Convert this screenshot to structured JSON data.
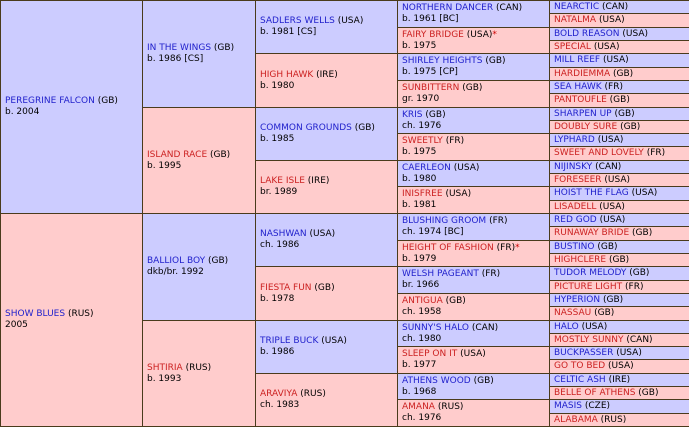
{
  "generations": [
    [
      {
        "name": "PEREGRINE FALCON",
        "country": "(GB)",
        "detail": "b. 2004"
      },
      {
        "name": "SHOW BLUES",
        "country": "(RUS)",
        "detail": "2005"
      }
    ],
    [
      {
        "name": "IN THE WINGS",
        "country": "(GB)",
        "detail": "b. 1986 [CS]"
      },
      {
        "name": "ISLAND RACE",
        "country": "(GB)",
        "detail": "b. 1995"
      },
      {
        "name": "BALLIOL BOY",
        "country": "(GB)",
        "detail": "dkb/br. 1992"
      },
      {
        "name": "SHTIRIA",
        "country": "(RUS)",
        "detail": "b. 1993"
      }
    ],
    [
      {
        "name": "SADLERS WELLS",
        "country": "(USA)",
        "detail": "b. 1981 [CS]"
      },
      {
        "name": "HIGH HAWK",
        "country": "(IRE)",
        "detail": "b. 1980"
      },
      {
        "name": "COMMON GROUNDS",
        "country": "(GB)",
        "detail": "b. 1985"
      },
      {
        "name": "LAKE ISLE",
        "country": "(IRE)",
        "detail": "br. 1989"
      },
      {
        "name": "NASHWAN",
        "country": "(USA)",
        "detail": "ch. 1986"
      },
      {
        "name": "FIESTA FUN",
        "country": "(GB)",
        "detail": "b. 1978"
      },
      {
        "name": "TRIPLE BUCK",
        "country": "(USA)",
        "detail": "b. 1986"
      },
      {
        "name": "ARAVIYA",
        "country": "(RUS)",
        "detail": "ch. 1983"
      }
    ],
    [
      {
        "name": "NORTHERN DANCER",
        "country": "(CAN)",
        "detail": "b. 1961 [BC]"
      },
      {
        "name": "FAIRY BRIDGE",
        "country": "(USA)",
        "star": "*",
        "detail": "b. 1975"
      },
      {
        "name": "SHIRLEY HEIGHTS",
        "country": "(GB)",
        "detail": "b. 1975 [CP]"
      },
      {
        "name": "SUNBITTERN",
        "country": "(GB)",
        "detail": "gr. 1970"
      },
      {
        "name": "KRIS",
        "country": "(GB)",
        "detail": "ch. 1976"
      },
      {
        "name": "SWEETLY",
        "country": "(FR)",
        "detail": "b. 1975"
      },
      {
        "name": "CAERLEON",
        "country": "(USA)",
        "detail": "b. 1980"
      },
      {
        "name": "INISFREE",
        "country": "(USA)",
        "detail": "b. 1981"
      },
      {
        "name": "BLUSHING GROOM",
        "country": "(FR)",
        "detail": "ch. 1974 [BC]"
      },
      {
        "name": "HEIGHT OF FASHION",
        "country": "(FR)",
        "star": "*",
        "detail": "b. 1979"
      },
      {
        "name": "WELSH PAGEANT",
        "country": "(FR)",
        "detail": "br. 1966"
      },
      {
        "name": "ANTIGUA",
        "country": "(GB)",
        "detail": "ch. 1958"
      },
      {
        "name": "SUNNY'S HALO",
        "country": "(CAN)",
        "detail": "ch. 1980"
      },
      {
        "name": "SLEEP ON IT",
        "country": "(USA)",
        "detail": "b. 1977"
      },
      {
        "name": "ATHENS WOOD",
        "country": "(GB)",
        "detail": "b. 1968"
      },
      {
        "name": "AMANA",
        "country": "(RUS)",
        "detail": "ch. 1976"
      }
    ],
    [
      {
        "name": "NEARCTIC",
        "country": "(CAN)"
      },
      {
        "name": "NATALMA",
        "country": "(USA)"
      },
      {
        "name": "BOLD REASON",
        "country": "(USA)"
      },
      {
        "name": "SPECIAL",
        "country": "(USA)"
      },
      {
        "name": "MILL REEF",
        "country": "(USA)"
      },
      {
        "name": "HARDIEMMA",
        "country": "(GB)"
      },
      {
        "name": "SEA HAWK",
        "country": "(FR)"
      },
      {
        "name": "PANTOUFLE",
        "country": "(GB)"
      },
      {
        "name": "SHARPEN UP",
        "country": "(GB)"
      },
      {
        "name": "DOUBLY SURE",
        "country": "(GB)"
      },
      {
        "name": "LYPHARD",
        "country": "(USA)"
      },
      {
        "name": "SWEET AND LOVELY",
        "country": "(FR)"
      },
      {
        "name": "NIJINSKY",
        "country": "(CAN)"
      },
      {
        "name": "FORESEER",
        "country": "(USA)"
      },
      {
        "name": "HOIST THE FLAG",
        "country": "(USA)"
      },
      {
        "name": "LISADELL",
        "country": "(USA)"
      },
      {
        "name": "RED GOD",
        "country": "(USA)"
      },
      {
        "name": "RUNAWAY BRIDE",
        "country": "(GB)"
      },
      {
        "name": "BUSTINO",
        "country": "(GB)"
      },
      {
        "name": "HIGHCLERE",
        "country": "(GB)"
      },
      {
        "name": "TUDOR MELODY",
        "country": "(GB)"
      },
      {
        "name": "PICTURE LIGHT",
        "country": "(FR)"
      },
      {
        "name": "HYPERION",
        "country": "(GB)"
      },
      {
        "name": "NASSAU",
        "country": "(GB)"
      },
      {
        "name": "HALO",
        "country": "(USA)"
      },
      {
        "name": "MOSTLY SUNNY",
        "country": "(CAN)"
      },
      {
        "name": "BUCKPASSER",
        "country": "(USA)"
      },
      {
        "name": "GO TO BED",
        "country": "(USA)"
      },
      {
        "name": "CELTIC ASH",
        "country": "(IRE)"
      },
      {
        "name": "BELLE OF ATHENS",
        "country": "(GB)"
      },
      {
        "name": "MASIS",
        "country": "(CZE)"
      },
      {
        "name": "ALABAMA",
        "country": "(RUS)"
      }
    ]
  ]
}
